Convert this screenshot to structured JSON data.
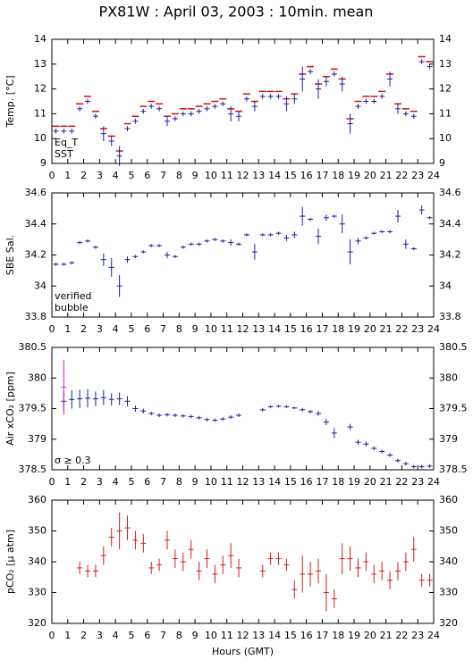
{
  "chart_data": [
    {
      "type": "scatter",
      "title": "PX81W : April 03, 2003 : 10min. mean",
      "y_label": "Temp. [°C]",
      "legend": "lower left",
      "grid": false,
      "x": [
        0.25,
        0.75,
        1.25,
        1.75,
        2.25,
        2.75,
        3.25,
        3.75,
        4.25,
        4.75,
        5.25,
        5.75,
        6.25,
        6.75,
        7.25,
        7.75,
        8.25,
        8.75,
        9.25,
        9.75,
        10.25,
        10.75,
        11.25,
        11.75,
        12.25,
        12.75,
        13.25,
        13.75,
        14.25,
        14.75,
        15.25,
        15.75,
        16.25,
        16.75,
        17.25,
        17.75,
        18.25,
        18.75,
        19.25,
        19.75,
        20.25,
        20.75,
        21.25,
        21.75,
        22.25,
        22.75,
        23.25,
        23.75
      ],
      "xlim": [
        0,
        24
      ],
      "xticks": [
        0,
        1,
        2,
        3,
        4,
        5,
        6,
        7,
        8,
        9,
        10,
        11,
        12,
        13,
        14,
        15,
        16,
        17,
        18,
        19,
        20,
        21,
        22,
        23,
        24
      ],
      "ylim": [
        9,
        14
      ],
      "yticks": [
        9,
        10,
        11,
        12,
        13,
        14
      ],
      "series": [
        {
          "name": "Eq_T",
          "color": "#d01010",
          "values": [
            10.5,
            10.5,
            10.5,
            11.4,
            11.7,
            11.1,
            10.4,
            10.1,
            9.5,
            10.6,
            10.9,
            11.3,
            11.5,
            11.4,
            10.9,
            11.0,
            11.2,
            11.2,
            11.3,
            11.4,
            11.5,
            11.6,
            11.2,
            11.1,
            11.8,
            11.5,
            11.9,
            11.9,
            11.9,
            11.6,
            11.8,
            12.6,
            12.9,
            12.2,
            12.5,
            12.8,
            12.4,
            10.8,
            11.5,
            11.7,
            11.7,
            11.9,
            12.6,
            11.4,
            11.2,
            11.1,
            13.3,
            13.1
          ]
        },
        {
          "name": "SST",
          "color": "#1c1ca8",
          "values": [
            10.3,
            10.3,
            10.3,
            11.2,
            11.5,
            10.9,
            10.2,
            9.9,
            9.3,
            10.4,
            10.7,
            11.1,
            11.3,
            11.2,
            10.7,
            10.8,
            11.0,
            11.0,
            11.1,
            11.2,
            11.3,
            11.4,
            11.0,
            10.9,
            11.6,
            11.3,
            11.7,
            11.7,
            11.7,
            11.4,
            11.6,
            12.4,
            12.7,
            12.0,
            12.3,
            12.6,
            12.2,
            10.6,
            11.3,
            11.5,
            11.5,
            11.7,
            12.4,
            11.2,
            11.0,
            10.9,
            13.1,
            12.9
          ],
          "errors": [
            0.1,
            0.1,
            0.1,
            0.1,
            0.1,
            0.1,
            0.3,
            0.2,
            0.4,
            0.1,
            0.1,
            0.1,
            0.1,
            0.1,
            0.2,
            0.1,
            0.1,
            0.1,
            0.1,
            0.1,
            0.1,
            0.1,
            0.3,
            0.2,
            0.1,
            0.2,
            0.1,
            0.1,
            0.1,
            0.3,
            0.2,
            0.5,
            0.1,
            0.4,
            0.2,
            0.1,
            0.3,
            0.4,
            0.1,
            0.1,
            0.1,
            0.1,
            0.3,
            0.2,
            0.1,
            0.1,
            0.1,
            0.1
          ]
        }
      ]
    },
    {
      "type": "scatter",
      "y_label": "SBE Sal.",
      "legend": "lower left",
      "grid": false,
      "x": [
        0.25,
        0.75,
        1.25,
        1.75,
        2.25,
        2.75,
        3.25,
        3.75,
        4.25,
        4.75,
        5.25,
        5.75,
        6.25,
        6.75,
        7.25,
        7.75,
        8.25,
        8.75,
        9.25,
        9.75,
        10.25,
        10.75,
        11.25,
        11.75,
        12.25,
        12.75,
        13.25,
        13.75,
        14.25,
        14.75,
        15.25,
        15.75,
        16.25,
        16.75,
        17.25,
        17.75,
        18.25,
        18.75,
        19.25,
        19.75,
        20.25,
        20.75,
        21.25,
        21.75,
        22.25,
        22.75,
        23.25,
        23.75
      ],
      "xlim": [
        0,
        24
      ],
      "xticks": [
        0,
        1,
        2,
        3,
        4,
        5,
        6,
        7,
        8,
        9,
        10,
        11,
        12,
        13,
        14,
        15,
        16,
        17,
        18,
        19,
        20,
        21,
        22,
        23,
        24
      ],
      "ylim": [
        33.8,
        34.6
      ],
      "yticks": [
        33.8,
        34,
        34.2,
        34.4,
        34.6
      ],
      "series": [
        {
          "name": "verified",
          "color": "#1c1ca8",
          "values": [
            34.14,
            34.14,
            34.15,
            34.28,
            34.29,
            34.25,
            34.17,
            34.12,
            34.0,
            34.17,
            34.19,
            34.22,
            34.26,
            34.26,
            34.2,
            34.19,
            34.25,
            34.27,
            34.27,
            34.29,
            34.3,
            34.29,
            34.28,
            34.27,
            34.33,
            34.22,
            34.33,
            34.33,
            34.34,
            34.31,
            34.33,
            34.45,
            34.43,
            34.32,
            34.44,
            34.45,
            34.4,
            34.22,
            34.29,
            34.31,
            34.34,
            34.35,
            34.35,
            34.45,
            34.27,
            34.24,
            34.49,
            34.44
          ],
          "errors": [
            0.01,
            0.01,
            0.01,
            0.01,
            0.01,
            0.01,
            0.04,
            0.06,
            0.07,
            0.02,
            0.01,
            0.01,
            0.01,
            0.01,
            0.02,
            0.01,
            0.01,
            0.01,
            0.01,
            0.01,
            0.01,
            0.01,
            0.02,
            0.01,
            0.01,
            0.05,
            0.01,
            0.01,
            0.01,
            0.02,
            0.02,
            0.06,
            0.01,
            0.05,
            0.02,
            0.01,
            0.06,
            0.08,
            0.02,
            0.01,
            0.01,
            0.01,
            0.01,
            0.04,
            0.03,
            0.01,
            0.03,
            0.01
          ]
        },
        {
          "name": "bubble",
          "color": "#cc22cc",
          "values": [
            null,
            null,
            null,
            null,
            null,
            null,
            null,
            null,
            null,
            null,
            null,
            null,
            null,
            null,
            null,
            null,
            null,
            null,
            null,
            null,
            null,
            null,
            null,
            null,
            null,
            null,
            null,
            null,
            null,
            null,
            null,
            null,
            null,
            null,
            null,
            null,
            null,
            null,
            null,
            null,
            null,
            null,
            null,
            null,
            null,
            null,
            null,
            null
          ],
          "errors": [
            null,
            null,
            null,
            null,
            null,
            null,
            null,
            null,
            null,
            null,
            null,
            null,
            null,
            null,
            null,
            null,
            null,
            null,
            null,
            null,
            null,
            null,
            null,
            null,
            null,
            null,
            null,
            null,
            null,
            null,
            null,
            null,
            null,
            null,
            null,
            null,
            null,
            null,
            null,
            null,
            null,
            null,
            null,
            null,
            null,
            null,
            null,
            null
          ]
        }
      ]
    },
    {
      "type": "scatter",
      "y_label": "Air xCO₂ [ppm]",
      "legend": "lower left",
      "grid": false,
      "x": [
        0.25,
        0.75,
        1.25,
        1.75,
        2.25,
        2.75,
        3.25,
        3.75,
        4.25,
        4.75,
        5.25,
        5.75,
        6.25,
        6.75,
        7.25,
        7.75,
        8.25,
        8.75,
        9.25,
        9.75,
        10.25,
        10.75,
        11.25,
        11.75,
        12.25,
        12.75,
        13.25,
        13.75,
        14.25,
        14.75,
        15.25,
        15.75,
        16.25,
        16.75,
        17.25,
        17.75,
        18.25,
        18.75,
        19.25,
        19.75,
        20.25,
        20.75,
        21.25,
        21.75,
        22.25,
        22.75,
        23.25,
        23.75
      ],
      "xlim": [
        0,
        24
      ],
      "xticks": [
        0,
        1,
        2,
        3,
        4,
        5,
        6,
        7,
        8,
        9,
        10,
        11,
        12,
        13,
        14,
        15,
        16,
        17,
        18,
        19,
        20,
        21,
        22,
        23,
        24
      ],
      "ylim": [
        378.5,
        380.5
      ],
      "yticks": [
        378.5,
        379,
        379.5,
        380,
        380.5
      ],
      "series": [
        {
          "color": "#1c1ca8",
          "values": [
            null,
            379.62,
            379.65,
            379.66,
            379.67,
            379.66,
            379.68,
            379.65,
            379.66,
            379.62,
            379.5,
            379.46,
            379.42,
            379.39,
            379.4,
            379.39,
            379.38,
            379.37,
            379.35,
            379.32,
            379.31,
            379.33,
            379.36,
            379.39,
            null,
            null,
            379.48,
            379.53,
            379.54,
            379.53,
            379.51,
            379.48,
            379.45,
            379.42,
            379.28,
            379.1,
            null,
            379.2,
            378.95,
            378.92,
            378.85,
            378.8,
            378.74,
            378.65,
            378.6,
            378.55,
            378.55,
            378.56
          ],
          "errors": [
            null,
            0.15,
            0.15,
            0.15,
            0.15,
            0.12,
            0.12,
            0.1,
            0.1,
            0.08,
            0.05,
            0.04,
            0.03,
            0.03,
            0.03,
            0.03,
            0.03,
            0.03,
            0.03,
            0.03,
            0.03,
            0.03,
            0.03,
            0.03,
            null,
            null,
            0.03,
            0.02,
            0.02,
            0.02,
            0.02,
            0.03,
            0.03,
            0.04,
            0.05,
            0.08,
            null,
            0.05,
            0.04,
            0.04,
            0.03,
            0.03,
            0.03,
            0.03,
            0.03,
            0.03,
            0.03,
            0.03
          ]
        },
        {
          "name": "σ ≥ 0.3",
          "color": "#cc22cc",
          "values": [
            null,
            379.85,
            null,
            null,
            null,
            null,
            null,
            null,
            null,
            null,
            null,
            null,
            null,
            null,
            null,
            null,
            null,
            null,
            null,
            null,
            null,
            null,
            null,
            null,
            null,
            null,
            null,
            null,
            null,
            null,
            null,
            null,
            null,
            null,
            null,
            null,
            null,
            null,
            null,
            null,
            null,
            null,
            null,
            null,
            null,
            null,
            null,
            null
          ],
          "errors": [
            null,
            0.45,
            null,
            null,
            null,
            null,
            null,
            null,
            null,
            null,
            null,
            null,
            null,
            null,
            null,
            null,
            null,
            null,
            null,
            null,
            null,
            null,
            null,
            null,
            null,
            null,
            null,
            null,
            null,
            null,
            null,
            null,
            null,
            null,
            null,
            null,
            null,
            null,
            null,
            null,
            null,
            null,
            null,
            null,
            null,
            null,
            null,
            null
          ]
        }
      ]
    },
    {
      "type": "scatter",
      "y_label": "pCO₂ [μ atm]",
      "x_label": "Hours (GMT)",
      "grid": false,
      "x": [
        0.25,
        0.75,
        1.25,
        1.75,
        2.25,
        2.75,
        3.25,
        3.75,
        4.25,
        4.75,
        5.25,
        5.75,
        6.25,
        6.75,
        7.25,
        7.75,
        8.25,
        8.75,
        9.25,
        9.75,
        10.25,
        10.75,
        11.25,
        11.75,
        12.25,
        12.75,
        13.25,
        13.75,
        14.25,
        14.75,
        15.25,
        15.75,
        16.25,
        16.75,
        17.25,
        17.75,
        18.25,
        18.75,
        19.25,
        19.75,
        20.25,
        20.75,
        21.25,
        21.75,
        22.25,
        22.75,
        23.25,
        23.75
      ],
      "xlim": [
        0,
        24
      ],
      "xticks": [
        0,
        1,
        2,
        3,
        4,
        5,
        6,
        7,
        8,
        9,
        10,
        11,
        12,
        13,
        14,
        15,
        16,
        17,
        18,
        19,
        20,
        21,
        22,
        23,
        24
      ],
      "ylim": [
        320,
        360
      ],
      "yticks": [
        320,
        330,
        340,
        350,
        360
      ],
      "series": [
        {
          "color": "#cc2020",
          "values": [
            null,
            null,
            null,
            338,
            337,
            337,
            342,
            348,
            350,
            351,
            347,
            346,
            338,
            339,
            347,
            341,
            340,
            344,
            337,
            341,
            336,
            339,
            342,
            338,
            null,
            null,
            337,
            341,
            341,
            339,
            331,
            336,
            336,
            337,
            330,
            328,
            341,
            341,
            338,
            340,
            336,
            337,
            334,
            337,
            340,
            344,
            334,
            334
          ],
          "errors": [
            null,
            null,
            null,
            2,
            2,
            2,
            3,
            3,
            6,
            4,
            3,
            3,
            2,
            2,
            3,
            3,
            3,
            3,
            3,
            3,
            3,
            3,
            4,
            3,
            null,
            null,
            2,
            2,
            2,
            2,
            3,
            6,
            4,
            4,
            6,
            3,
            5,
            4,
            3,
            3,
            3,
            3,
            3,
            3,
            3,
            4,
            2,
            2
          ]
        }
      ]
    }
  ]
}
